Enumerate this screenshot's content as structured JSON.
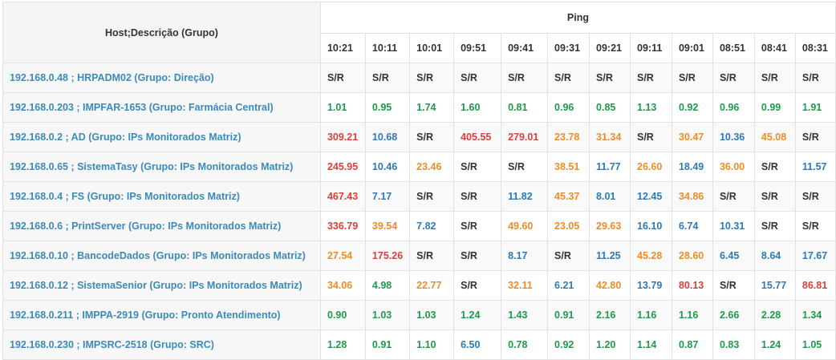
{
  "header": {
    "host_label": "Host;Descrição (Grupo)",
    "group_label": "Ping",
    "times": [
      "10:21",
      "10:11",
      "10:01",
      "09:51",
      "09:41",
      "09:31",
      "09:21",
      "09:11",
      "09:01",
      "08:51",
      "08:41",
      "08:31"
    ]
  },
  "rows": [
    {
      "host": "192.168.0.48 ; HRPADM02 (Grupo: Direção)",
      "values": [
        "S/R",
        "S/R",
        "S/R",
        "S/R",
        "S/R",
        "S/R",
        "S/R",
        "S/R",
        "S/R",
        "S/R",
        "S/R",
        "S/R"
      ]
    },
    {
      "host": "192.168.0.203 ; IMPFAR-1653 (Grupo: Farmácia Central)",
      "values": [
        "1.01",
        "0.95",
        "1.74",
        "1.60",
        "0.81",
        "0.96",
        "0.85",
        "1.13",
        "0.92",
        "0.96",
        "0.99",
        "1.91"
      ]
    },
    {
      "host": "192.168.0.2 ; AD (Grupo: IPs Monitorados Matriz)",
      "values": [
        "309.21",
        "10.68",
        "S/R",
        "405.55",
        "279.01",
        "23.78",
        "31.34",
        "S/R",
        "30.47",
        "10.36",
        "45.08",
        "S/R"
      ]
    },
    {
      "host": "192.168.0.65 ; SistemaTasy (Grupo: IPs Monitorados Matriz)",
      "values": [
        "245.95",
        "10.46",
        "23.46",
        "S/R",
        "S/R",
        "38.51",
        "11.77",
        "26.60",
        "18.49",
        "36.00",
        "S/R",
        "11.57"
      ]
    },
    {
      "host": "192.168.0.4 ; FS (Grupo: IPs Monitorados Matriz)",
      "values": [
        "467.43",
        "7.17",
        "S/R",
        "S/R",
        "11.82",
        "45.37",
        "8.01",
        "12.45",
        "34.86",
        "S/R",
        "S/R",
        "S/R"
      ]
    },
    {
      "host": "192.168.0.6 ; PrintServer (Grupo: IPs Monitorados Matriz)",
      "values": [
        "336.79",
        "39.54",
        "7.82",
        "S/R",
        "49.60",
        "23.05",
        "29.63",
        "16.10",
        "6.74",
        "10.31",
        "S/R",
        "S/R"
      ]
    },
    {
      "host": "192.168.0.10 ; BancodeDados (Grupo: IPs Monitorados Matriz)",
      "values": [
        "27.54",
        "175.26",
        "S/R",
        "S/R",
        "8.17",
        "S/R",
        "11.25",
        "45.28",
        "28.60",
        "6.45",
        "8.64",
        "17.67"
      ]
    },
    {
      "host": "192.168.0.12 ; SistemaSenior (Grupo: IPs Monitorados Matriz)",
      "values": [
        "34.06",
        "4.98",
        "22.77",
        "S/R",
        "32.11",
        "6.21",
        "42.80",
        "13.79",
        "80.13",
        "S/R",
        "15.77",
        "86.81"
      ]
    },
    {
      "host": "192.168.0.211 ; IMPPA-2919 (Grupo: Pronto Atendimento)",
      "values": [
        "0.90",
        "1.03",
        "1.03",
        "1.24",
        "1.43",
        "0.91",
        "2.16",
        "1.16",
        "1.16",
        "2.66",
        "2.28",
        "1.34"
      ]
    },
    {
      "host": "192.168.0.230 ; IMPSRC-2518 (Grupo: SRC)",
      "values": [
        "1.28",
        "0.91",
        "1.10",
        "6.50",
        "0.78",
        "0.92",
        "1.20",
        "1.14",
        "0.87",
        "0.83",
        "1.24",
        "1.05"
      ]
    }
  ],
  "colors": {
    "no_response": "#333333",
    "green": "#1d9b4b",
    "blue": "#2e79b9",
    "orange": "#f08c28",
    "red": "#d9413a",
    "host_link": "#3b8bba"
  }
}
